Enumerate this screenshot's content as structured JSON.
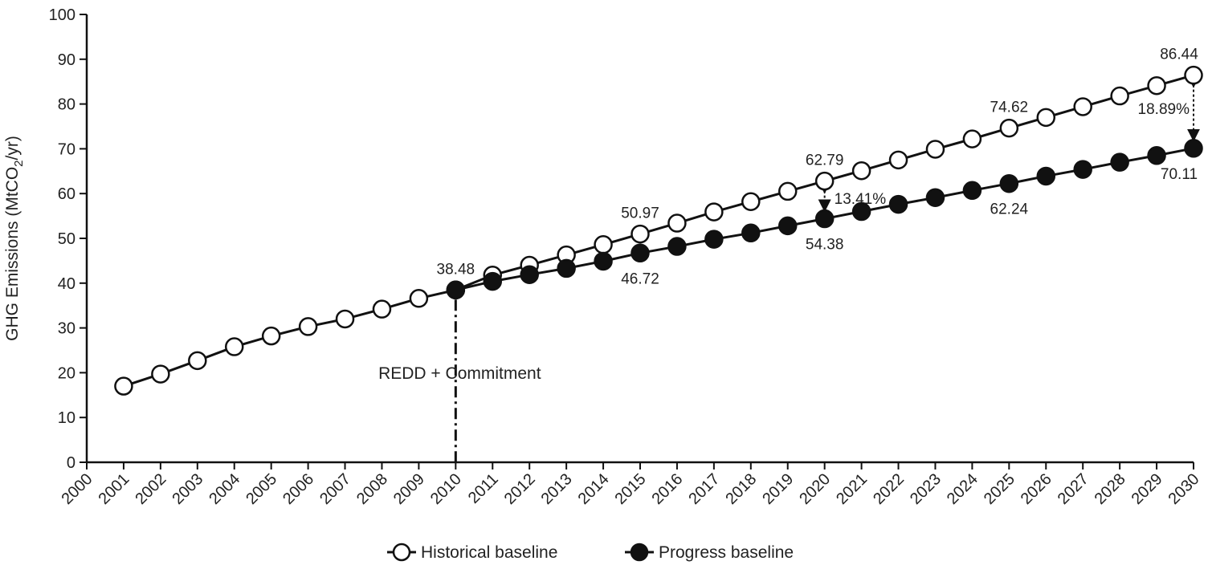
{
  "chart_data": {
    "type": "line",
    "title": "",
    "xlabel": "",
    "ylabel": "GHG Emissions (MtCO",
    "ylabel_sub": "2",
    "ylabel_tail": "/yr)",
    "xlim": [
      2000,
      2030
    ],
    "ylim": [
      0,
      100
    ],
    "yticks": [
      0,
      10,
      20,
      30,
      40,
      50,
      60,
      70,
      80,
      90,
      100
    ],
    "xticks": [
      2000,
      2001,
      2002,
      2003,
      2004,
      2005,
      2006,
      2007,
      2008,
      2009,
      2010,
      2011,
      2012,
      2013,
      2014,
      2015,
      2016,
      2017,
      2018,
      2019,
      2020,
      2021,
      2022,
      2023,
      2024,
      2025,
      2026,
      2027,
      2028,
      2029,
      2030
    ],
    "grid": false,
    "legend_position": "bottom",
    "series": [
      {
        "name": "Historical baseline",
        "marker": "open-circle",
        "x": [
          2001,
          2002,
          2003,
          2004,
          2005,
          2006,
          2007,
          2008,
          2009,
          2010,
          2011,
          2012,
          2013,
          2014,
          2015,
          2016,
          2017,
          2018,
          2019,
          2020,
          2021,
          2022,
          2023,
          2024,
          2025,
          2026,
          2027,
          2028,
          2029,
          2030
        ],
        "values": [
          17.0,
          19.7,
          22.7,
          25.8,
          28.2,
          30.3,
          32.0,
          34.2,
          36.6,
          38.48,
          41.8,
          44.0,
          46.3,
          48.6,
          50.97,
          53.4,
          55.9,
          58.2,
          60.5,
          62.79,
          65.1,
          67.5,
          69.9,
          72.2,
          74.62,
          77.0,
          79.4,
          81.8,
          84.1,
          86.44
        ]
      },
      {
        "name": "Progress baseline",
        "marker": "filled-circle",
        "x": [
          2010,
          2011,
          2012,
          2013,
          2014,
          2015,
          2016,
          2017,
          2018,
          2019,
          2020,
          2021,
          2022,
          2023,
          2024,
          2025,
          2026,
          2027,
          2028,
          2029,
          2030
        ],
        "values": [
          38.48,
          40.4,
          41.9,
          43.3,
          44.9,
          46.72,
          48.2,
          49.8,
          51.2,
          52.8,
          54.38,
          56.0,
          57.6,
          59.1,
          60.7,
          62.24,
          63.9,
          65.4,
          67.0,
          68.5,
          70.11
        ]
      }
    ],
    "data_labels": [
      {
        "text": "38.48",
        "x": 2010,
        "y": 38.48,
        "anchor": "above"
      },
      {
        "text": "50.97",
        "x": 2015,
        "y": 50.97,
        "anchor": "above"
      },
      {
        "text": "62.79",
        "x": 2020,
        "y": 62.79,
        "anchor": "above"
      },
      {
        "text": "74.62",
        "x": 2025,
        "y": 74.62,
        "anchor": "above"
      },
      {
        "text": "86.44",
        "x": 2030,
        "y": 86.44,
        "anchor": "above"
      },
      {
        "text": "46.72",
        "x": 2015,
        "y": 46.72,
        "anchor": "below"
      },
      {
        "text": "54.38",
        "x": 2020,
        "y": 54.38,
        "anchor": "below"
      },
      {
        "text": "62.24",
        "x": 2025,
        "y": 62.24,
        "anchor": "below"
      },
      {
        "text": "70.11",
        "x": 2030,
        "y": 70.11,
        "anchor": "below"
      }
    ],
    "gap_annotations": [
      {
        "text": "13.41%",
        "x": 2020,
        "y_top": 62.79,
        "y_bottom": 54.38
      },
      {
        "text": "18.89%",
        "x": 2030,
        "y_top": 86.44,
        "y_bottom": 70.11
      }
    ],
    "event_annotation": {
      "text": "REDD + Commitment",
      "x": 2010,
      "y": 38.48
    }
  }
}
